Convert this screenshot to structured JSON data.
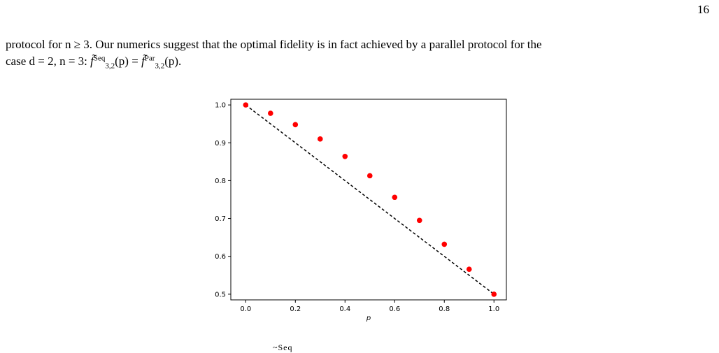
{
  "page": {
    "number": "16"
  },
  "text": {
    "line1": "protocol for n ≥ 3. Our numerics suggest that the optimal fidelity is in fact achieved by a parallel protocol for the",
    "line2_prefix": "case d = 2, n = 3:",
    "f_symbol": "f̃",
    "seq_sup": "Seq",
    "par_sup": "Par",
    "sub": "3,2",
    "arg": "(p)",
    "equals": "=",
    "period": "."
  },
  "caption_fragment": "~Seq",
  "colors": {
    "points": "#ff0000",
    "line": "#000000"
  },
  "chart_data": {
    "type": "scatter",
    "title": "",
    "xlabel": "p",
    "ylabel": "",
    "xlim": [
      -0.06,
      1.05
    ],
    "ylim": [
      0.485,
      1.015
    ],
    "xticks": [
      0.0,
      0.2,
      0.4,
      0.6,
      0.8,
      1.0
    ],
    "xtick_labels": [
      "0.0",
      "0.2",
      "0.4",
      "0.6",
      "0.8",
      "1.0"
    ],
    "yticks": [
      0.5,
      0.6,
      0.7,
      0.8,
      0.9,
      1.0
    ],
    "ytick_labels": [
      "0.5",
      "0.6",
      "0.7",
      "0.8",
      "0.9",
      "1.0"
    ],
    "grid": false,
    "series": [
      {
        "style": "red-dots",
        "x": [
          0.0,
          0.1,
          0.2,
          0.3,
          0.4,
          0.5,
          0.6,
          0.7,
          0.8,
          0.9,
          1.0
        ],
        "y": [
          1.0,
          0.978,
          0.948,
          0.91,
          0.864,
          0.813,
          0.756,
          0.695,
          0.632,
          0.566,
          0.5
        ]
      },
      {
        "style": "black-dashed-line",
        "x": [
          0.0,
          1.0
        ],
        "y": [
          1.0,
          0.5
        ]
      }
    ]
  }
}
